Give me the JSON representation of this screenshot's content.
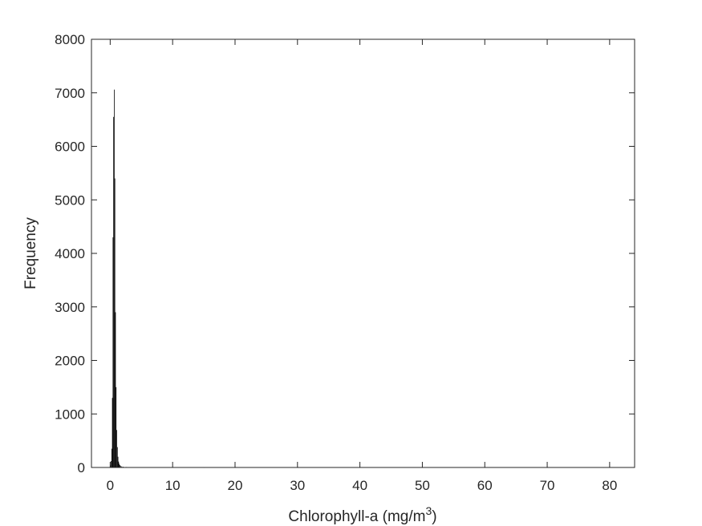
{
  "chart_data": {
    "type": "bar",
    "subtype": "histogram",
    "xlabel": "Chlorophyll-a (mg/m",
    "xlabel_superscript": "3",
    "xlabel_suffix": ")",
    "ylabel": "Frequency",
    "xlim": [
      -3,
      84
    ],
    "ylim": [
      0,
      8000
    ],
    "xticks": [
      0,
      10,
      20,
      30,
      40,
      50,
      60,
      70,
      80
    ],
    "yticks": [
      0,
      1000,
      2000,
      3000,
      4000,
      5000,
      6000,
      7000,
      8000
    ],
    "grid": false,
    "bar_color": "#000000",
    "bin_width": 0.1,
    "bins": [
      {
        "x": 0.0,
        "y": 40
      },
      {
        "x": 0.1,
        "y": 120
      },
      {
        "x": 0.2,
        "y": 350
      },
      {
        "x": 0.3,
        "y": 1300
      },
      {
        "x": 0.4,
        "y": 4300
      },
      {
        "x": 0.5,
        "y": 6550
      },
      {
        "x": 0.6,
        "y": 7060
      },
      {
        "x": 0.7,
        "y": 5400
      },
      {
        "x": 0.8,
        "y": 2900
      },
      {
        "x": 0.9,
        "y": 1500
      },
      {
        "x": 1.0,
        "y": 700
      },
      {
        "x": 1.1,
        "y": 380
      },
      {
        "x": 1.2,
        "y": 200
      },
      {
        "x": 1.3,
        "y": 110
      },
      {
        "x": 1.4,
        "y": 70
      },
      {
        "x": 1.5,
        "y": 45
      },
      {
        "x": 1.6,
        "y": 30
      },
      {
        "x": 1.8,
        "y": 20
      },
      {
        "x": 2.0,
        "y": 14
      },
      {
        "x": 2.5,
        "y": 9
      },
      {
        "x": 3.0,
        "y": 6
      },
      {
        "x": 4.0,
        "y": 4
      },
      {
        "x": 5.0,
        "y": 3
      },
      {
        "x": 7.0,
        "y": 2
      },
      {
        "x": 10.0,
        "y": 2
      },
      {
        "x": 15.0,
        "y": 1
      },
      {
        "x": 20.0,
        "y": 1
      },
      {
        "x": 30.0,
        "y": 1
      },
      {
        "x": 40.0,
        "y": 1
      },
      {
        "x": 50.0,
        "y": 1
      },
      {
        "x": 60.0,
        "y": 1
      },
      {
        "x": 70.0,
        "y": 1
      },
      {
        "x": 79.0,
        "y": 1
      }
    ]
  }
}
